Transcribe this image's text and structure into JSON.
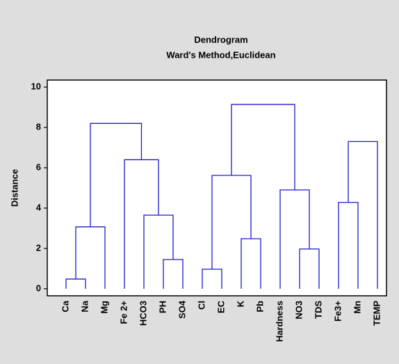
{
  "chart_data": {
    "type": "dendrogram",
    "title": "Dendrogram",
    "subtitle": "Ward's Method,Euclidean",
    "y_label": "Distance",
    "categories": [
      "Ca",
      "Na",
      "Mg",
      "Fe 2+",
      "HCO3",
      "PH",
      "SO4",
      "Cl",
      "EC",
      "K",
      "Pb",
      "Hardness",
      "NO3",
      "TDS",
      "Fe3+",
      "Mn",
      "TEMP"
    ],
    "merges": [
      {
        "children": [
          0,
          1
        ],
        "height": 0.48
      },
      {
        "children": [
          17,
          2
        ],
        "height": 3.07
      },
      {
        "children": [
          5,
          6
        ],
        "height": 1.45
      },
      {
        "children": [
          4,
          19
        ],
        "height": 3.65
      },
      {
        "children": [
          3,
          20
        ],
        "height": 6.4
      },
      {
        "children": [
          18,
          21
        ],
        "height": 8.2
      },
      {
        "children": [
          7,
          8
        ],
        "height": 0.97
      },
      {
        "children": [
          9,
          10
        ],
        "height": 2.48
      },
      {
        "children": [
          23,
          24
        ],
        "height": 5.62
      },
      {
        "children": [
          12,
          13
        ],
        "height": 1.97
      },
      {
        "children": [
          11,
          26
        ],
        "height": 4.9
      },
      {
        "children": [
          25,
          27
        ],
        "height": 9.14
      },
      {
        "children": [
          14,
          15
        ],
        "height": 4.28
      },
      {
        "children": [
          29,
          16
        ],
        "height": 7.3
      }
    ],
    "color": "#1a1acc",
    "ylim": [
      -0.35,
      10.35
    ],
    "yticks": [
      0,
      2,
      4,
      6,
      8,
      10
    ]
  }
}
